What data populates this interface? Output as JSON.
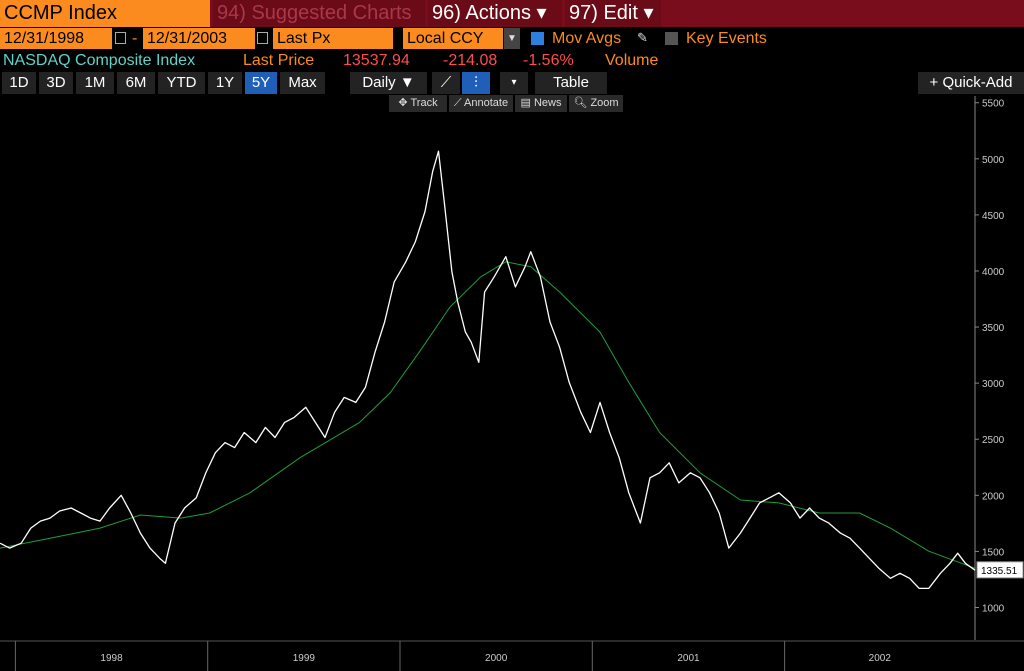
{
  "header": {
    "ticker": "CCMP Index",
    "suggested": "94) Suggested Charts",
    "actions": "96) Actions ▾",
    "edit": "97) Edit ▾"
  },
  "controls": {
    "start_date": "12/31/1998",
    "separator": "-",
    "end_date": "12/31/2003",
    "field": "Last Px",
    "currency": "Local CCY",
    "mov_avgs": "Mov Avgs",
    "key_events": "Key Events"
  },
  "legend": {
    "security": "NASDAQ Composite Index",
    "field": "Last Price",
    "price": "13537.94",
    "change": "-214.08",
    "pct_change": "-1.56%",
    "volume": "Volume"
  },
  "periods": [
    "1D",
    "3D",
    "1M",
    "6M",
    "YTD",
    "1Y",
    "5Y",
    "Max"
  ],
  "selected_period": 6,
  "frequency": "Daily ▼",
  "table": "Table",
  "quick_add": "+ Quick-Add",
  "tools": [
    "Track",
    "Annotate",
    "News",
    "Zoom"
  ],
  "chart_data": {
    "type": "line",
    "categories": [
      "1998",
      "1999",
      "2000",
      "2001",
      "2002"
    ],
    "xticks": [
      1998,
      1999,
      2000,
      2001,
      2002
    ],
    "xlim": [
      1997.92,
      2002.99
    ],
    "ylim": [
      710,
      5560
    ],
    "yticks": [
      1000,
      1500,
      2000,
      2500,
      3000,
      3500,
      4000,
      4500,
      5000,
      5500
    ],
    "last_value": 1335.51,
    "series": [
      {
        "color": "#ffffff",
        "x": [
          1997.92,
          1997.97,
          1998.03,
          1998.08,
          1998.13,
          1998.18,
          1998.23,
          1998.29,
          1998.34,
          1998.39,
          1998.44,
          1998.49,
          1998.55,
          1998.6,
          1998.65,
          1998.7,
          1998.75,
          1998.78,
          1998.83,
          1998.88,
          1998.94,
          1998.99,
          1999.04,
          1999.09,
          1999.14,
          1999.19,
          1999.25,
          1999.3,
          1999.35,
          1999.4,
          1999.45,
          1999.51,
          1999.56,
          1999.61,
          1999.66,
          1999.71,
          1999.77,
          1999.82,
          1999.87,
          1999.92,
          1999.97,
          2000.03,
          2000.08,
          2000.13,
          2000.17,
          2000.2,
          2000.23,
          2000.27,
          2000.3,
          2000.34,
          2000.37,
          2000.41,
          2000.44,
          2000.49,
          2000.55,
          2000.6,
          2000.65,
          2000.68,
          2000.73,
          2000.78,
          2000.83,
          2000.88,
          2000.94,
          2000.99,
          2001.04,
          2001.09,
          2001.14,
          2001.19,
          2001.25,
          2001.3,
          2001.35,
          2001.4,
          2001.45,
          2001.51,
          2001.56,
          2001.61,
          2001.66,
          2001.71,
          2001.77,
          2001.82,
          2001.87,
          2001.92,
          2001.97,
          2002.03,
          2002.08,
          2002.13,
          2002.18,
          2002.23,
          2002.29,
          2002.34,
          2002.39,
          2002.44,
          2002.49,
          2002.55,
          2002.6,
          2002.65,
          2002.7,
          2002.75,
          2002.81,
          2002.86,
          2002.9,
          2002.94,
          2002.99
        ],
        "values": [
          1573,
          1529,
          1573,
          1708,
          1770,
          1797,
          1860,
          1887,
          1842,
          1797,
          1770,
          1887,
          2000,
          1842,
          1663,
          1529,
          1439,
          1394,
          1752,
          1887,
          1977,
          2200,
          2380,
          2470,
          2425,
          2560,
          2470,
          2605,
          2515,
          2650,
          2695,
          2785,
          2650,
          2515,
          2740,
          2873,
          2828,
          2962,
          3276,
          3545,
          3903,
          4082,
          4262,
          4530,
          4889,
          5068,
          4620,
          3993,
          3724,
          3455,
          3365,
          3186,
          3813,
          3948,
          4127,
          3858,
          4037,
          4172,
          3948,
          3545,
          3320,
          3007,
          2740,
          2560,
          2828,
          2560,
          2335,
          2022,
          1753,
          2156,
          2201,
          2290,
          2111,
          2201,
          2156,
          2022,
          1842,
          1529,
          1663,
          1797,
          1932,
          1977,
          2022,
          1932,
          1797,
          1887,
          1797,
          1752,
          1663,
          1618,
          1529,
          1439,
          1350,
          1260,
          1305,
          1260,
          1170,
          1170,
          1305,
          1394,
          1484,
          1394,
          1332
        ]
      },
      {
        "color": "#1f9e3a",
        "x": [
          1997.92,
          1998.18,
          1998.44,
          1998.65,
          1998.86,
          1999.01,
          1999.22,
          1999.48,
          1999.79,
          1999.95,
          2000.1,
          2000.26,
          2000.42,
          2000.55,
          2000.68,
          2000.83,
          2001.04,
          2001.19,
          2001.35,
          2001.56,
          2001.77,
          2001.97,
          2002.18,
          2002.39,
          2002.55,
          2002.75,
          2002.99
        ],
        "values": [
          1529,
          1618,
          1708,
          1824,
          1797,
          1842,
          2022,
          2335,
          2650,
          2917,
          3276,
          3679,
          3948,
          4082,
          4037,
          3813,
          3455,
          3007,
          2560,
          2201,
          1958,
          1932,
          1842,
          1842,
          1708,
          1502,
          1349
        ]
      }
    ]
  }
}
